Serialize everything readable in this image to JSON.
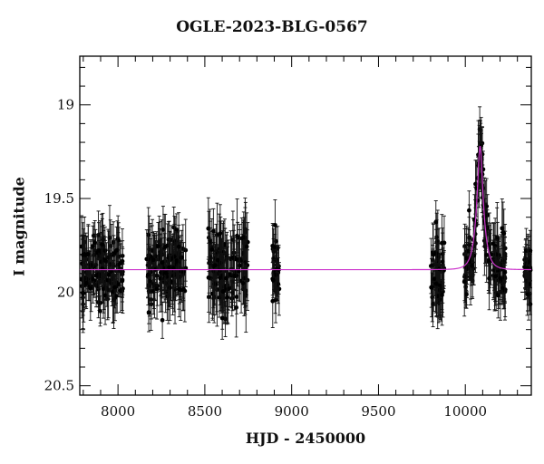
{
  "chart_data": {
    "type": "scatter",
    "title": "OGLE-2023-BLG-0567",
    "xlabel": "HJD - 2450000",
    "ylabel": "I magnitude",
    "xlim": [
      7780,
      10380
    ],
    "ylim": [
      20.55,
      18.74
    ],
    "y_inverted": true,
    "x_ticks": [
      8000,
      8500,
      9000,
      9500,
      10000
    ],
    "x_tick_labels": [
      "8000",
      "8500",
      "9000",
      "9500",
      "10000"
    ],
    "y_ticks": [
      19,
      19.5,
      20,
      20.5
    ],
    "y_tick_labels": [
      "19",
      "19.5",
      "20",
      "20.5"
    ],
    "grid": false,
    "series": [
      {
        "kind": "observations",
        "marker": "filled-circle",
        "color": "#000000",
        "observing_seasons": [
          {
            "x_range": [
              7790,
              8030
            ],
            "mean_mag": 19.87,
            "scatter": 0.13,
            "err": 0.12
          },
          {
            "x_range": [
              8160,
              8390
            ],
            "mean_mag": 19.88,
            "scatter": 0.14,
            "err": 0.13
          },
          {
            "x_range": [
              8520,
              8750
            ],
            "mean_mag": 19.88,
            "scatter": 0.15,
            "err": 0.14
          },
          {
            "x_range": [
              8890,
              8930
            ],
            "mean_mag": 19.75,
            "scatter": 0.13,
            "err": 0.1
          },
          {
            "x_range": [
              9800,
              9880
            ],
            "mean_mag": 19.9,
            "scatter": 0.14,
            "err": 0.13
          },
          {
            "x_range": [
              9990,
              10230
            ],
            "mean_mag": 19.88,
            "scatter": 0.14,
            "err": 0.13
          },
          {
            "x_range": [
              10340,
              10375
            ],
            "mean_mag": 19.85,
            "scatter": 0.1,
            "err": 0.1
          }
        ]
      },
      {
        "kind": "model",
        "line": true,
        "color": "#cc33cc",
        "baseline_mag": 19.88,
        "peak_x": 10085,
        "peak_mag": 19.22,
        "tE": 40
      }
    ]
  }
}
